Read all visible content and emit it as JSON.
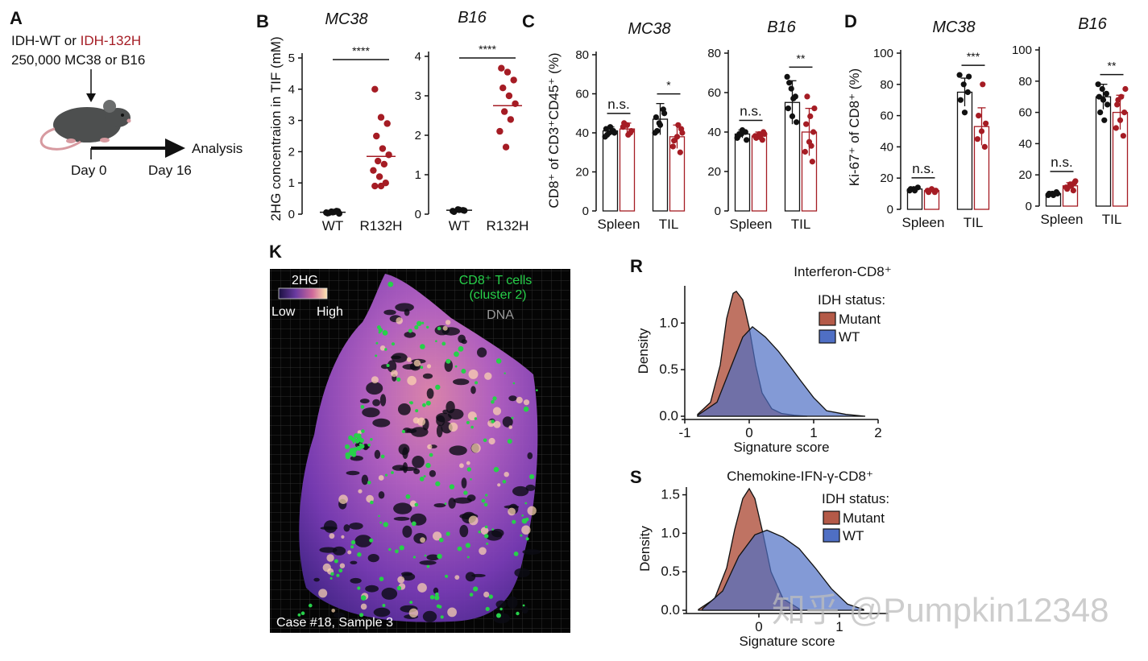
{
  "colors": {
    "wt": "#111111",
    "idh": "#a51c24",
    "mutant_fill": "#b45a48",
    "wt_fill": "#4f6fc4",
    "cd8": "#27d04a",
    "axis": "#111111"
  },
  "panel_a": {
    "label": "A",
    "line1_prefix": "IDH-WT or ",
    "line1_highlight": "IDH-132H",
    "line2": "250,000 MC38 or B16",
    "analysis": "Analysis",
    "day0": "Day 0",
    "day16": "Day 16",
    "icon": "mouse-icon"
  },
  "panel_b": {
    "label": "B",
    "ylabel": "2HG concentraion in TIF (mM)",
    "charts": [
      {
        "title": "MC38",
        "ylim": [
          0,
          5
        ],
        "yticks": [
          "0",
          "1",
          "2",
          "3",
          "4",
          "5"
        ],
        "sig": "****",
        "categories": [
          "WT",
          "R132H"
        ],
        "wt_points": [
          0.05,
          0.08,
          0.1,
          0.03,
          0.06,
          0.09,
          0.04,
          0.07,
          0.02
        ],
        "mut_points": [
          4.0,
          3.1,
          2.9,
          2.5,
          2.1,
          1.9,
          1.7,
          1.6,
          1.4,
          1.2,
          1.0,
          0.9,
          0.9
        ],
        "wt_mean": 0.06,
        "mut_mean": 1.85
      },
      {
        "title": "B16",
        "ylim": [
          0,
          4
        ],
        "yticks": [
          "0",
          "1",
          "2",
          "3",
          "4"
        ],
        "sig": "****",
        "categories": [
          "WT",
          "R132H"
        ],
        "wt_points": [
          0.08,
          0.12,
          0.1,
          0.06,
          0.11,
          0.09
        ],
        "mut_points": [
          3.7,
          3.6,
          3.4,
          3.2,
          3.0,
          2.8,
          2.6,
          2.4,
          2.1,
          1.7
        ],
        "wt_mean": 0.1,
        "mut_mean": 2.75
      }
    ]
  },
  "panel_c": {
    "label": "C",
    "ylabel": "CD8⁺ of CD3⁺CD45⁺ (%)",
    "charts": [
      {
        "title": "MC38",
        "ylim": [
          0,
          80
        ],
        "yticks": [
          "0",
          "20",
          "40",
          "60",
          "80"
        ],
        "groups": [
          "Spleen",
          "TIL"
        ],
        "bars": [
          {
            "group": "Spleen",
            "wt": 41,
            "wt_sd": 2,
            "idh": 42,
            "idh_sd": 3
          },
          {
            "group": "TIL",
            "wt": 47,
            "wt_sd": 8,
            "idh": 38,
            "idh_sd": 6
          }
        ],
        "wt_pts": [
          [
            38,
            40,
            41,
            42,
            43,
            40,
            39
          ],
          [
            40,
            45,
            52,
            48,
            44,
            50,
            41
          ]
        ],
        "idh_pts": [
          [
            40,
            43,
            44,
            41,
            45,
            39
          ],
          [
            30,
            33,
            38,
            42,
            36,
            44,
            40
          ]
        ],
        "sig": [
          "n.s.",
          "*"
        ]
      },
      {
        "title": "B16",
        "ylim": [
          0,
          80
        ],
        "yticks": [
          "0",
          "20",
          "40",
          "60",
          "80"
        ],
        "groups": [
          "Spleen",
          "TIL"
        ],
        "bars": [
          {
            "group": "Spleen",
            "wt": 39,
            "wt_sd": 2,
            "idh": 38,
            "idh_sd": 2
          },
          {
            "group": "TIL",
            "wt": 55,
            "wt_sd": 11,
            "idh": 40,
            "idh_sd": 12
          }
        ],
        "wt_pts": [
          [
            37,
            39,
            40,
            38,
            41,
            36,
            39
          ],
          [
            68,
            62,
            58,
            52,
            48,
            45,
            65,
            57
          ]
        ],
        "idh_pts": [
          [
            36,
            38,
            39,
            40,
            37,
            38,
            39
          ],
          [
            25,
            30,
            35,
            40,
            44,
            48,
            52,
            58,
            33
          ]
        ],
        "sig": [
          "n.s.",
          "**"
        ]
      }
    ]
  },
  "panel_d": {
    "label": "D",
    "ylabel": "Ki-67⁺ of CD8⁺ (%)",
    "charts": [
      {
        "title": "MC38",
        "ylim": [
          0,
          100
        ],
        "yticks": [
          "0",
          "20",
          "40",
          "60",
          "80",
          "100"
        ],
        "groups": [
          "Spleen",
          "TIL"
        ],
        "bars": [
          {
            "group": "Spleen",
            "wt": 13,
            "wt_sd": 1,
            "idh": 12,
            "idh_sd": 1
          },
          {
            "group": "TIL",
            "wt": 75,
            "wt_sd": 9,
            "idh": 53,
            "idh_sd": 12
          }
        ],
        "wt_pts": [
          [
            12,
            13,
            14,
            13,
            12
          ],
          [
            86,
            80,
            75,
            70,
            62,
            85
          ]
        ],
        "idh_pts": [
          [
            11,
            12,
            13,
            12,
            11
          ],
          [
            40,
            45,
            50,
            55,
            60,
            80
          ]
        ],
        "sig": [
          "n.s.",
          "***"
        ]
      },
      {
        "title": "B16",
        "ylim": [
          0,
          100
        ],
        "yticks": [
          "0",
          "20",
          "40",
          "60",
          "80",
          "100"
        ],
        "groups": [
          "Spleen",
          "TIL"
        ],
        "bars": [
          {
            "group": "Spleen",
            "wt": 8,
            "wt_sd": 1,
            "idh": 13,
            "idh_sd": 2
          },
          {
            "group": "TIL",
            "wt": 70,
            "wt_sd": 8,
            "idh": 60,
            "idh_sd": 11
          }
        ],
        "wt_pts": [
          [
            7,
            8,
            9,
            8,
            7,
            8
          ],
          [
            78,
            75,
            72,
            70,
            68,
            65,
            60,
            55
          ]
        ],
        "idh_pts": [
          [
            10,
            12,
            14,
            15,
            11,
            13,
            16
          ],
          [
            45,
            50,
            55,
            60,
            65,
            70,
            75,
            68
          ]
        ],
        "sig": [
          "n.s.",
          "**"
        ]
      }
    ]
  },
  "panel_k": {
    "label": "K",
    "legend_title": "2HG",
    "legend_low": "Low",
    "legend_high": "High",
    "cd8_label_1": "CD8⁺ T cells",
    "cd8_label_2": "(cluster 2)",
    "dna_label": "DNA",
    "caption": "Case #18, Sample 3"
  },
  "chart_data": [
    {
      "type": "area",
      "panel": "R",
      "title": "Interferon-CD8⁺",
      "xlabel": "Signature score",
      "ylabel": "Density",
      "xlim": [
        -1,
        2
      ],
      "ylim": [
        0,
        1.4
      ],
      "xticks": [
        "-1",
        "0",
        "1",
        "2"
      ],
      "yticks": [
        "0.0",
        "0.5",
        "1.0"
      ],
      "legend_title": "IDH status:",
      "legend": [
        "Mutant",
        "WT"
      ],
      "series": [
        {
          "name": "Mutant",
          "x": [
            -0.8,
            -0.6,
            -0.45,
            -0.35,
            -0.25,
            -0.2,
            -0.1,
            0,
            0.1,
            0.2,
            0.35,
            0.5,
            0.7,
            0.9
          ],
          "values": [
            0.02,
            0.15,
            0.55,
            1.05,
            1.32,
            1.34,
            1.25,
            0.95,
            0.55,
            0.25,
            0.08,
            0.03,
            0.01,
            0.0
          ]
        },
        {
          "name": "WT",
          "x": [
            -0.8,
            -0.5,
            -0.3,
            -0.1,
            0.05,
            0.25,
            0.45,
            0.65,
            0.8,
            1.0,
            1.2,
            1.5,
            1.8
          ],
          "values": [
            0.01,
            0.15,
            0.5,
            0.85,
            0.96,
            0.85,
            0.7,
            0.52,
            0.38,
            0.2,
            0.06,
            0.02,
            0.0
          ]
        }
      ]
    },
    {
      "type": "area",
      "panel": "S",
      "title": "Chemokine-IFN-γ-CD8⁺",
      "xlabel": "Signature score",
      "ylabel": "Density",
      "xlim": [
        -0.9,
        1.6
      ],
      "ylim": [
        0,
        1.6
      ],
      "xticks": [
        "0",
        "1"
      ],
      "yticks": [
        "0.0",
        "0.5",
        "1.0",
        "1.5"
      ],
      "legend_title": "IDH status:",
      "legend": [
        "Mutant",
        "WT"
      ],
      "series": [
        {
          "name": "Mutant",
          "x": [
            -0.75,
            -0.55,
            -0.4,
            -0.3,
            -0.2,
            -0.12,
            -0.05,
            0.05,
            0.15,
            0.3,
            0.5
          ],
          "values": [
            0.01,
            0.15,
            0.55,
            1.05,
            1.45,
            1.58,
            1.45,
            1.0,
            0.5,
            0.15,
            0.02
          ]
        },
        {
          "name": "WT",
          "x": [
            -0.7,
            -0.45,
            -0.25,
            -0.05,
            0.1,
            0.3,
            0.5,
            0.7,
            0.9,
            1.1,
            1.3
          ],
          "values": [
            0.02,
            0.25,
            0.7,
            0.98,
            1.04,
            0.95,
            0.8,
            0.55,
            0.28,
            0.08,
            0.01
          ]
        }
      ]
    }
  ],
  "watermark": "知乎 @Pumpkin12348"
}
